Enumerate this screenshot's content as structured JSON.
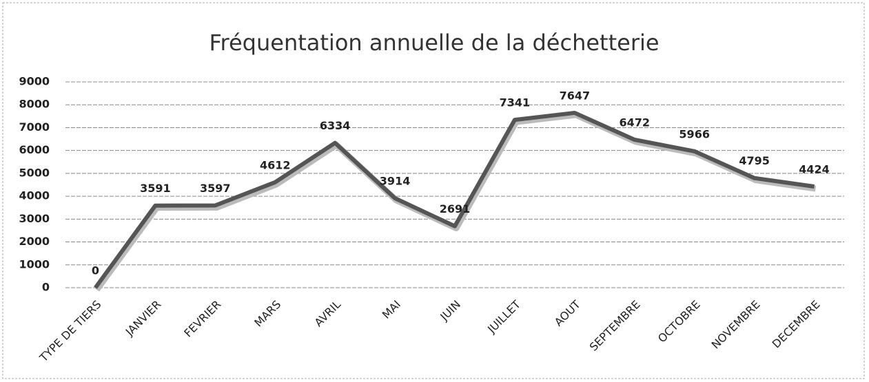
{
  "chart_data": {
    "type": "line",
    "title": "Fréquentation annuelle de la déchetterie",
    "categories": [
      "TYPE DE TIERS",
      "JANVIER",
      "FEVRIER",
      "MARS",
      "AVRIL",
      "MAI",
      "JUIN",
      "JUILLET",
      "AOUT",
      "SEPTEMBRE",
      "OCTOBRE",
      "NOVEMBRE",
      "DECEMBRE"
    ],
    "values": [
      0,
      3591,
      3597,
      4612,
      6334,
      3914,
      2691,
      7341,
      7647,
      6472,
      5966,
      4795,
      4424
    ],
    "color": "#555555",
    "ylim": [
      0,
      9000
    ],
    "yticks": [
      0,
      1000,
      2000,
      3000,
      4000,
      5000,
      6000,
      7000,
      8000,
      9000
    ],
    "grid": true
  }
}
